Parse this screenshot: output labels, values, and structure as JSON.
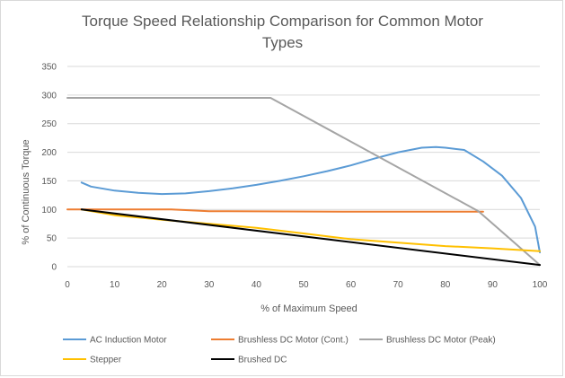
{
  "chart_data": {
    "type": "line",
    "title_line1": "Torque Speed Relationship Comparison for Common Motor",
    "title_line2": "Types",
    "xlabel": "% of Maximum Speed",
    "ylabel": "% of Continuous Torque",
    "xlim": [
      0,
      100
    ],
    "ylim": [
      0,
      350
    ],
    "xticks": [
      0,
      10,
      20,
      30,
      40,
      50,
      60,
      70,
      80,
      90,
      100
    ],
    "yticks": [
      0,
      50,
      100,
      150,
      200,
      250,
      300,
      350
    ],
    "grid": true,
    "legend_position": "bottom",
    "series": [
      {
        "name": "AC Induction Motor",
        "color": "#5b9bd5",
        "x": [
          3,
          5,
          10,
          15,
          20,
          25,
          30,
          35,
          40,
          45,
          50,
          55,
          60,
          65,
          70,
          75,
          78,
          80,
          84,
          88,
          92,
          96,
          99,
          100
        ],
        "y": [
          147,
          140,
          133,
          129,
          127,
          128,
          132,
          137,
          143,
          150,
          158,
          167,
          177,
          189,
          200,
          208,
          209,
          208,
          204,
          184,
          159,
          120,
          70,
          25
        ]
      },
      {
        "name": "Brushless DC Motor (Cont.)",
        "color": "#ed7d31",
        "x": [
          0,
          22,
          30,
          60,
          88
        ],
        "y": [
          100,
          100,
          97,
          96,
          96
        ]
      },
      {
        "name": "Brushless DC Motor (Peak)",
        "color": "#a5a5a5",
        "x": [
          0,
          43,
          87,
          100
        ],
        "y": [
          295,
          295,
          97,
          3
        ]
      },
      {
        "name": "Stepper",
        "color": "#ffc000",
        "x": [
          3,
          10,
          20,
          30,
          40,
          50,
          60,
          70,
          80,
          90,
          100
        ],
        "y": [
          100,
          90,
          82,
          75,
          68,
          58,
          48,
          42,
          36,
          32,
          27
        ]
      },
      {
        "name": "Brushed DC",
        "color": "#000000",
        "x": [
          3,
          100
        ],
        "y": [
          100,
          3
        ]
      }
    ]
  }
}
